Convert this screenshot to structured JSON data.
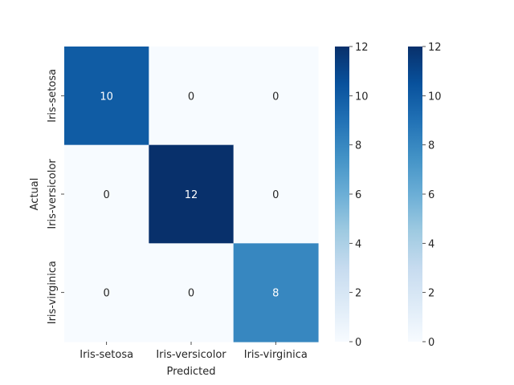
{
  "chart_data": {
    "type": "heatmap",
    "title": "",
    "xlabel": "Predicted",
    "ylabel": "Actual",
    "x_categories": [
      "Iris-setosa",
      "Iris-versicolor",
      "Iris-virginica"
    ],
    "y_categories": [
      "Iris-setosa",
      "Iris-versicolor",
      "Iris-virginica"
    ],
    "values": [
      [
        10,
        0,
        0
      ],
      [
        0,
        12,
        0
      ],
      [
        0,
        0,
        8
      ]
    ],
    "colormap": "Blues",
    "color_range": [
      0,
      12
    ],
    "colorbars": [
      {
        "ticks": [
          "0",
          "2",
          "4",
          "6",
          "8",
          "10",
          "12"
        ]
      },
      {
        "ticks": [
          "0",
          "2",
          "4",
          "6",
          "8",
          "10",
          "12"
        ]
      }
    ]
  },
  "colors": {
    "low": "#f7fbff",
    "high": "#08306b",
    "text_dark": "#262626",
    "text_light": "#ffffff"
  }
}
